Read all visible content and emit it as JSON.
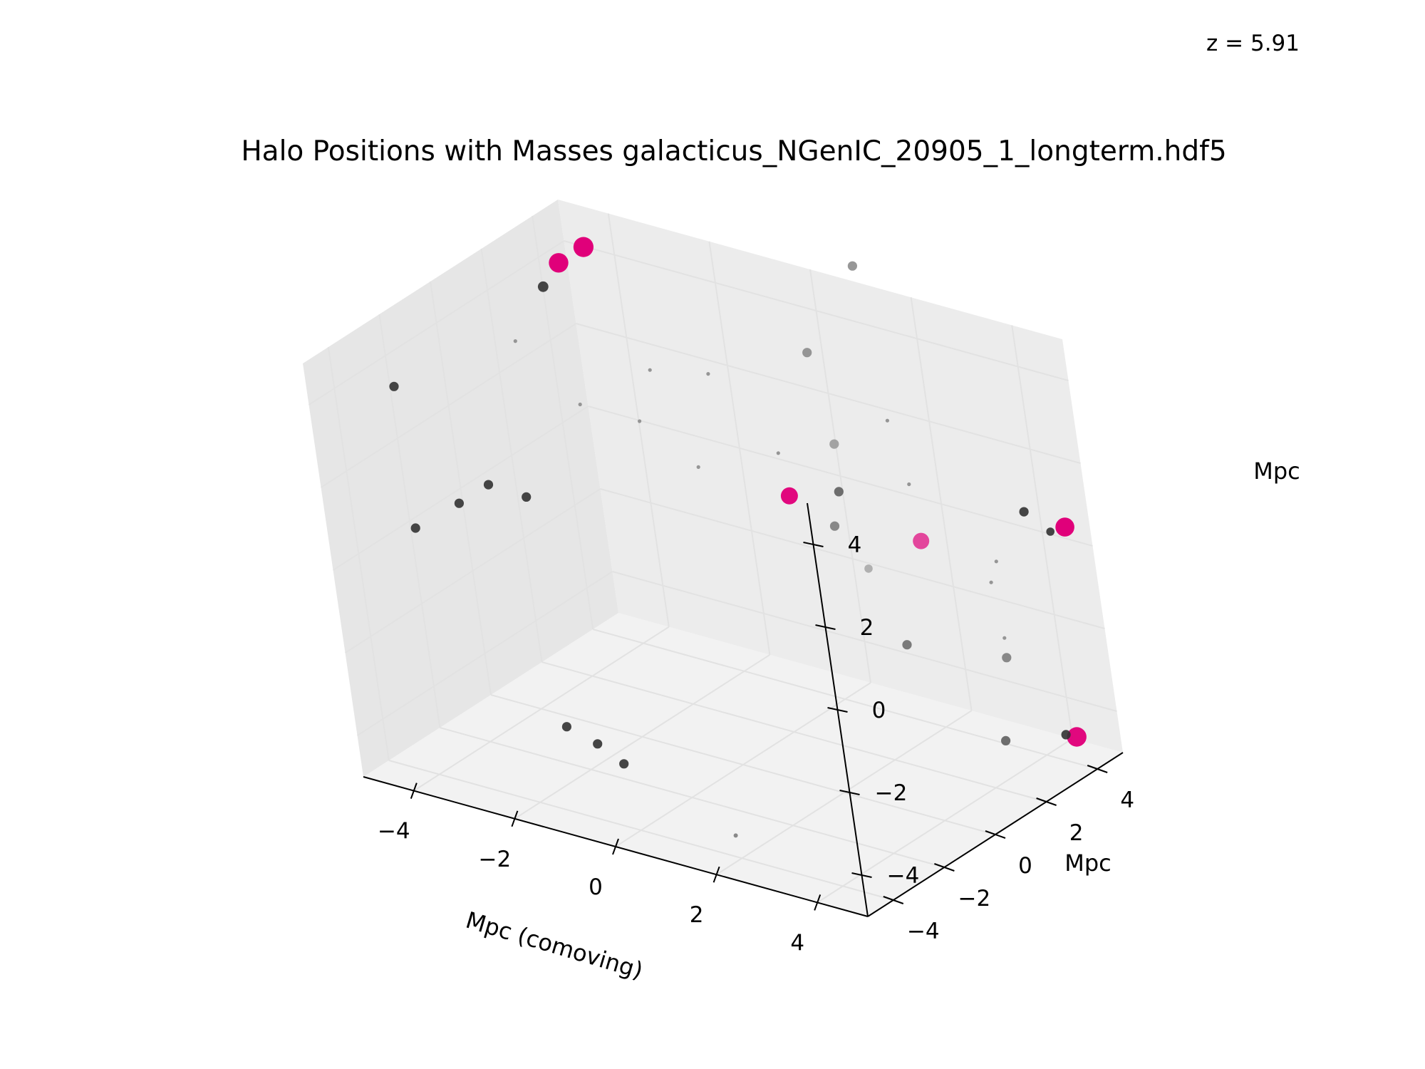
{
  "chart_data": {
    "type": "scatter",
    "projection": "3d",
    "title": "Halo Positions with Masses galacticus_NGenIC_20905_1_longterm.hdf5",
    "annotation": "z = 5.91",
    "xlabel": "Mpc (comoving)",
    "ylabel": "Mpc",
    "zlabel": "Mpc",
    "xlim": [
      -5,
      5
    ],
    "ylim": [
      -5,
      5
    ],
    "zlim": [
      -5,
      5
    ],
    "x_ticks": [
      -4,
      -2,
      0,
      2,
      4
    ],
    "y_ticks": [
      -4,
      -2,
      0,
      2,
      4
    ],
    "z_ticks": [
      -4,
      -2,
      0,
      2,
      4
    ],
    "x_tick_labels": [
      "−4",
      "−2",
      "0",
      "2",
      "4"
    ],
    "y_tick_labels": [
      "−4",
      "−2",
      "0",
      "2",
      "4"
    ],
    "z_tick_labels": [
      "−4",
      "−2",
      "0",
      "2",
      "4"
    ],
    "grid": true,
    "colors": {
      "pane": "#f2f2f2",
      "grid": "#e2e2e2",
      "massive": "#e0007a",
      "halo": "#333333"
    },
    "points": [
      {
        "x": -4.6,
        "y": 4.0,
        "z": 4.0,
        "s": 170,
        "shade": 0.0
      },
      {
        "x": -4.5,
        "y": 4.8,
        "z": 4.1,
        "s": 180,
        "shade": 0.0
      },
      {
        "x": -4.3,
        "y": 2.8,
        "z": 4.0,
        "s": 50,
        "shade": 0.0
      },
      {
        "x": 0.5,
        "y": 2.2,
        "z": 0.8,
        "s": 130,
        "shade": 0.05
      },
      {
        "x": 3.2,
        "y": 2.0,
        "z": 0.7,
        "s": 120,
        "shade": 0.5
      },
      {
        "x": 4.6,
        "y": 4.8,
        "z": 0.4,
        "s": 160,
        "shade": 0.0
      },
      {
        "x": 4.9,
        "y": 3.6,
        "z": -4.1,
        "s": 170,
        "shade": 0.05
      },
      {
        "x": 4.8,
        "y": 3.4,
        "z": -4.0,
        "s": 40,
        "shade": 0.0
      },
      {
        "x": 4.4,
        "y": 4.6,
        "z": 0.3,
        "s": 30,
        "shade": 0.0
      },
      {
        "x": 3.8,
        "y": 4.8,
        "z": 0.5,
        "s": 40,
        "shade": 0.0
      },
      {
        "x": -4.8,
        "y": -2.2,
        "z": 3.4,
        "s": 40,
        "shade": 0.0
      },
      {
        "x": -3.4,
        "y": -4.6,
        "z": 1.4,
        "s": 40,
        "shade": 0.0
      },
      {
        "x": -4.3,
        "y": -0.2,
        "z": 0.4,
        "s": 40,
        "shade": 0.0
      },
      {
        "x": -4.5,
        "y": -1.0,
        "z": 0.2,
        "s": 40,
        "shade": 0.0
      },
      {
        "x": -3.9,
        "y": 0.4,
        "z": 0.0,
        "s": 40,
        "shade": 0.0
      },
      {
        "x": -0.2,
        "y": 4.8,
        "z": 3.0,
        "s": 40,
        "shade": 0.6
      },
      {
        "x": 0.2,
        "y": 4.6,
        "z": 1.0,
        "s": 40,
        "shade": 0.7
      },
      {
        "x": 0.9,
        "y": 3.3,
        "z": 0.6,
        "s": 40,
        "shade": 0.3
      },
      {
        "x": 1.0,
        "y": 2.8,
        "z": 0.0,
        "s": 40,
        "shade": 0.5
      },
      {
        "x": 1.8,
        "y": 2.4,
        "z": -0.6,
        "s": 30,
        "shade": 0.8
      },
      {
        "x": 1.0,
        "y": 4.8,
        "z": 5.5,
        "s": 40,
        "shade": 0.6
      },
      {
        "x": 3.0,
        "y": 1.3,
        "z": -1.6,
        "s": 40,
        "shade": 0.4
      },
      {
        "x": 3.0,
        "y": 4.8,
        "z": -3.3,
        "s": 40,
        "shade": 0.5
      },
      {
        "x": 4.0,
        "y": 2.6,
        "z": -4.1,
        "s": 40,
        "shade": 0.3
      },
      {
        "x": -1.8,
        "y": -3.0,
        "z": -3.5,
        "s": 40,
        "shade": 0.0
      },
      {
        "x": -1.1,
        "y": -3.2,
        "z": -3.6,
        "s": 40,
        "shade": 0.0
      },
      {
        "x": -0.5,
        "y": -3.4,
        "z": -3.8,
        "s": 40,
        "shade": 0.0
      },
      {
        "x": 2.4,
        "y": -4.8,
        "z": -4.0,
        "s": 8,
        "shade": 0.5
      },
      {
        "x": -4.0,
        "y": 1.0,
        "z": 3.5,
        "s": 6,
        "shade": 0.6
      },
      {
        "x": -3.2,
        "y": 1.6,
        "z": 2.0,
        "s": 6,
        "shade": 0.6
      },
      {
        "x": -2.6,
        "y": 2.6,
        "z": 1.4,
        "s": 6,
        "shade": 0.6
      },
      {
        "x": -2.0,
        "y": 2.2,
        "z": 3.0,
        "s": 6,
        "shade": 0.6
      },
      {
        "x": -1.5,
        "y": 3.4,
        "z": 2.6,
        "s": 6,
        "shade": 0.6
      },
      {
        "x": 1.6,
        "y": 4.2,
        "z": 2.2,
        "s": 6,
        "shade": 0.6
      },
      {
        "x": 2.2,
        "y": 3.6,
        "z": 1.1,
        "s": 6,
        "shade": 0.6
      },
      {
        "x": 3.6,
        "y": 3.6,
        "z": -0.8,
        "s": 6,
        "shade": 0.6
      },
      {
        "x": 4.0,
        "y": 3.2,
        "z": 0.0,
        "s": 6,
        "shade": 0.6
      },
      {
        "x": 4.4,
        "y": 2.4,
        "z": -1.4,
        "s": 6,
        "shade": 0.6
      },
      {
        "x": -0.6,
        "y": 1.0,
        "z": 1.6,
        "s": 6,
        "shade": 0.6
      },
      {
        "x": 0.4,
        "y": 2.2,
        "z": 1.8,
        "s": 6,
        "shade": 0.6
      }
    ]
  }
}
